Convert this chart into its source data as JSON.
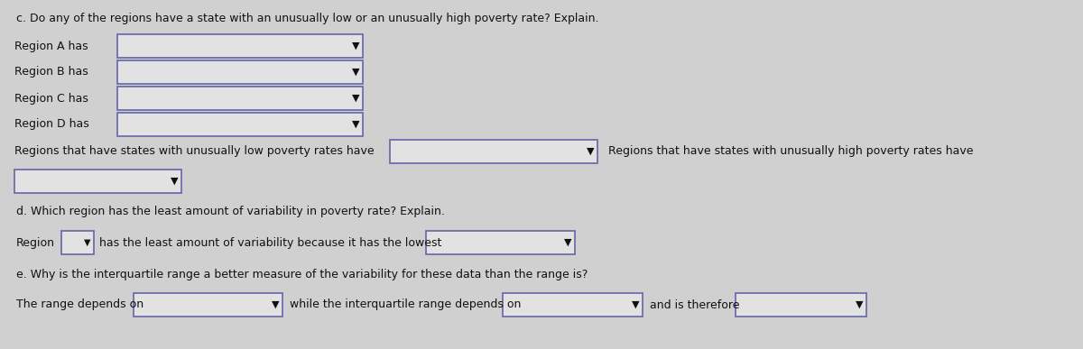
{
  "background_color": "#d0d0d0",
  "title_text": "c. Do any of the regions have a state with an unusually low or an unusually high poverty rate? Explain.",
  "section_d_text": "d. Which region has the least amount of variability in poverty rate? Explain.",
  "section_e_text": "e. Why is the interquartile range a better measure of the variability for these data than the range is?",
  "row_labels_c": [
    "Region A has",
    "Region B has",
    "Region C has",
    "Region D has"
  ],
  "row_label_low": "Regions that have states with unusually low poverty rates have",
  "row_label_high": "Regions that have states with unusually high poverty rates have",
  "row_label_d": "Region",
  "row_text_d": "has the least amount of variability because it has the lowest",
  "row_label_e1": "The range depends on",
  "row_label_e2": "while the interquartile range depends on",
  "row_label_e3": "and is therefore",
  "box_fill": "#e2e2e2",
  "box_edge": "#6666aa",
  "text_color": "#111111",
  "font_size": 9.0,
  "dropdown_arrow": "▼"
}
